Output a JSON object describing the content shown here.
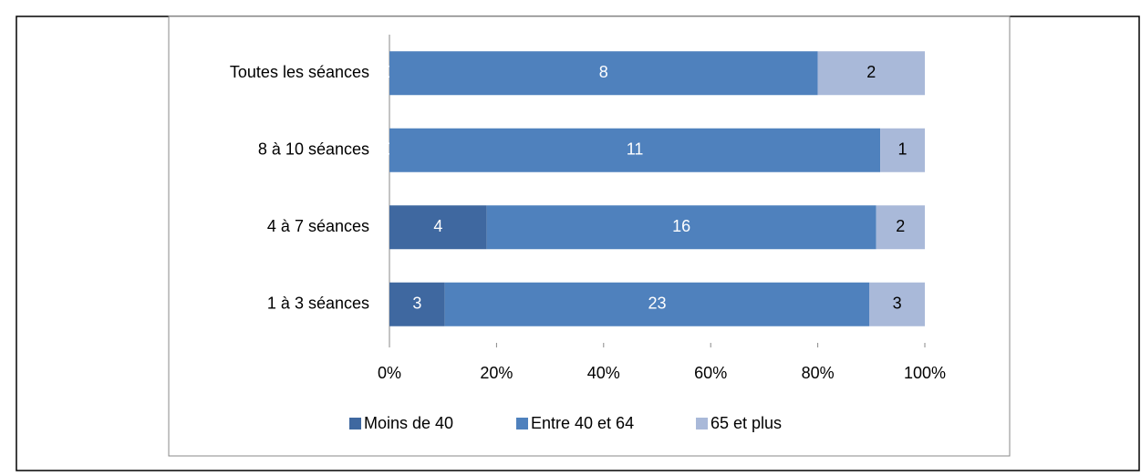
{
  "chart_data": {
    "type": "bar",
    "orientation": "horizontal",
    "stacking": "percent",
    "categories": [
      "Toutes les séances",
      "8 à 10 séances",
      "4 à 7 séances",
      "1 à 3 séances"
    ],
    "series": [
      {
        "name": "Moins de 40",
        "color": "#3f68a0",
        "values": [
          0,
          0,
          4,
          3
        ]
      },
      {
        "name": "Entre 40 et 64",
        "color": "#4f81bd",
        "values": [
          8,
          11,
          16,
          23
        ]
      },
      {
        "name": "65 et plus",
        "color": "#a9b9d9",
        "values": [
          2,
          1,
          2,
          3
        ]
      }
    ],
    "xlim": [
      0,
      100
    ],
    "xticks": [
      {
        "value": 0,
        "label": "0%"
      },
      {
        "value": 20,
        "label": "20%"
      },
      {
        "value": 40,
        "label": "40%"
      },
      {
        "value": 60,
        "label": "60%"
      },
      {
        "value": 80,
        "label": "80%"
      },
      {
        "value": 100,
        "label": "100%"
      }
    ],
    "legend": "bottom"
  }
}
